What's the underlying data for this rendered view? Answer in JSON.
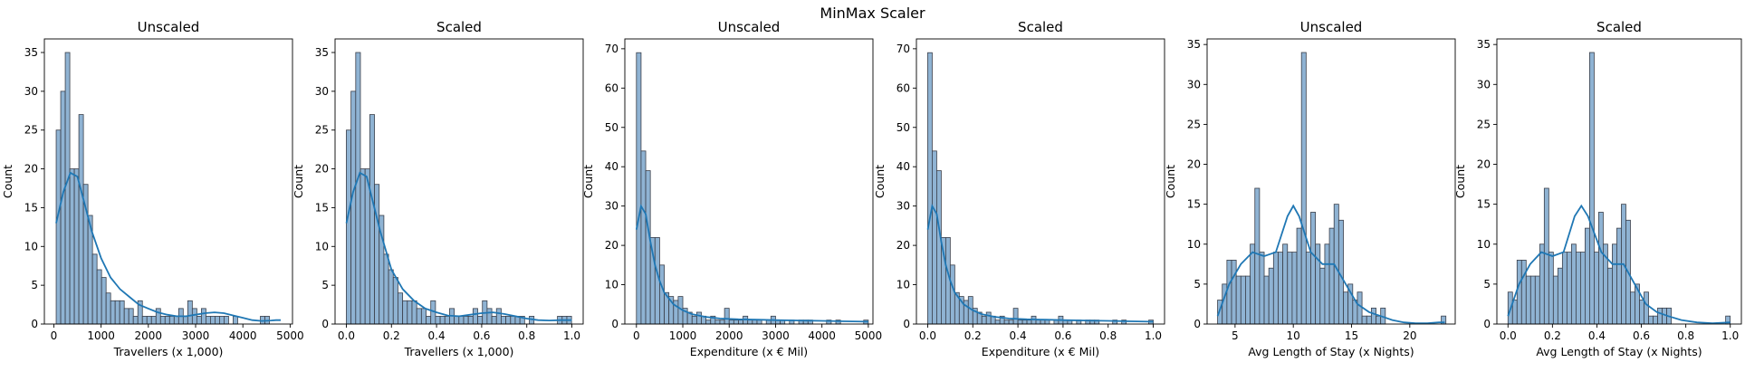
{
  "figure": {
    "suptitle": "MinMax Scaler"
  },
  "colors": {
    "bar_fill": "#8fb3d3",
    "bar_edge": "#3a3f4a",
    "kde": "#1f77b4"
  },
  "chart_data": [
    {
      "type": "bar",
      "title": "Unscaled",
      "xlabel": "Travellers (x 1,000)",
      "ylabel": "Count",
      "xlim": [
        -200,
        5050
      ],
      "ylim": [
        0,
        36.75
      ],
      "xticks": [
        0,
        1000,
        2000,
        3000,
        4000,
        5000
      ],
      "xtick_labels": [
        "0",
        "1000",
        "2000",
        "3000",
        "4000",
        "5000"
      ],
      "yticks": [
        0,
        5,
        10,
        15,
        20,
        25,
        30,
        35
      ],
      "ytick_labels": [
        "0",
        "5",
        "10",
        "15",
        "20",
        "25",
        "30",
        "35"
      ],
      "bin_start": 50,
      "bin_width": 96,
      "values": [
        25,
        30,
        35,
        20,
        20,
        27,
        18,
        14,
        9,
        7,
        6,
        4,
        3,
        3,
        3,
        2,
        2,
        1,
        3,
        1,
        1,
        1,
        2,
        1,
        1,
        1,
        1,
        2,
        1,
        3,
        2,
        1,
        2,
        1,
        1,
        1,
        1,
        1,
        0,
        1,
        0,
        0,
        0,
        0,
        0,
        1,
        1,
        0
      ],
      "kde_x": [
        50,
        200,
        350,
        500,
        650,
        800,
        1000,
        1200,
        1400,
        1600,
        1800,
        2000,
        2200,
        2400,
        2600,
        2800,
        3000,
        3200,
        3400,
        3600,
        3800,
        4000,
        4200,
        4400,
        4600,
        4700,
        4800
      ],
      "kde_y": [
        13,
        17,
        19.5,
        19,
        15.5,
        12,
        8.5,
        6,
        4.5,
        3.5,
        2.5,
        2,
        1.5,
        1.2,
        1,
        1,
        1.2,
        1.4,
        1.5,
        1.4,
        1.1,
        0.8,
        0.5,
        0.4,
        0.45,
        0.5,
        0.5
      ]
    },
    {
      "type": "bar",
      "title": "Scaled",
      "xlabel": "Travellers (x 1,000)",
      "ylabel": "Count",
      "xlim": [
        -0.05,
        1.05
      ],
      "ylim": [
        0,
        36.75
      ],
      "xticks": [
        0,
        0.2,
        0.4,
        0.6,
        0.8,
        1.0
      ],
      "xtick_labels": [
        "0.0",
        "0.2",
        "0.4",
        "0.6",
        "0.8",
        "1.0"
      ],
      "yticks": [
        0,
        5,
        10,
        15,
        20,
        25,
        30,
        35
      ],
      "ytick_labels": [
        "0",
        "5",
        "10",
        "15",
        "20",
        "25",
        "30",
        "35"
      ],
      "bin_start": 0,
      "bin_width": 0.0208,
      "values": [
        25,
        30,
        35,
        20,
        20,
        27,
        18,
        14,
        9,
        7,
        6,
        4,
        3,
        3,
        3,
        2,
        2,
        1,
        3,
        1,
        1,
        1,
        2,
        1,
        1,
        1,
        1,
        2,
        1,
        3,
        2,
        1,
        2,
        1,
        1,
        1,
        1,
        1,
        0,
        1,
        0,
        0,
        0,
        0,
        0,
        1,
        1,
        1
      ],
      "kde_x": [
        0,
        0.03,
        0.06,
        0.09,
        0.12,
        0.15,
        0.2,
        0.25,
        0.3,
        0.35,
        0.4,
        0.45,
        0.5,
        0.55,
        0.6,
        0.65,
        0.7,
        0.75,
        0.8,
        0.85,
        0.9,
        0.95,
        1.0
      ],
      "kde_y": [
        13,
        17,
        19.5,
        19,
        15.5,
        12,
        7,
        4.5,
        3,
        2,
        1.5,
        1.1,
        1,
        1.2,
        1.4,
        1.5,
        1.3,
        1,
        0.7,
        0.5,
        0.45,
        0.5,
        0.5
      ]
    },
    {
      "type": "bar",
      "title": "Unscaled",
      "xlabel": "Expenditure (x € Mil)",
      "ylabel": "Count",
      "xlim": [
        -250,
        5100
      ],
      "ylim": [
        0,
        72.5
      ],
      "xticks": [
        0,
        1000,
        2000,
        3000,
        4000,
        5000
      ],
      "xtick_labels": [
        "0",
        "1000",
        "2000",
        "3000",
        "4000",
        "5000"
      ],
      "yticks": [
        0,
        10,
        20,
        30,
        40,
        50,
        60,
        70
      ],
      "ytick_labels": [
        "0",
        "10",
        "20",
        "30",
        "40",
        "50",
        "60",
        "70"
      ],
      "bin_start": 0,
      "bin_width": 100,
      "values": [
        69,
        44,
        39,
        22,
        22,
        15,
        8,
        7,
        6,
        7,
        4,
        3,
        2,
        3,
        2,
        1,
        2,
        1,
        1,
        4,
        1,
        1,
        1,
        2,
        1,
        1,
        1,
        0,
        1,
        2,
        1,
        1,
        0,
        1,
        0,
        1,
        1,
        1,
        0,
        0,
        0,
        1,
        0,
        1,
        0,
        0,
        0,
        0,
        0,
        1
      ],
      "kde_x": [
        0,
        100,
        200,
        300,
        400,
        500,
        600,
        800,
        1000,
        1200,
        1500,
        1800,
        2200,
        2600,
        3000,
        3500,
        4000,
        4500,
        5000
      ],
      "kde_y": [
        24,
        30,
        28,
        21,
        15,
        11,
        8,
        5,
        3.5,
        2.5,
        1.8,
        1.4,
        1.2,
        1.1,
        1,
        0.9,
        0.8,
        0.7,
        0.6
      ]
    },
    {
      "type": "bar",
      "title": "Scaled",
      "xlabel": "Expenditure (x € Mil)",
      "ylabel": "Count",
      "xlim": [
        -0.05,
        1.05
      ],
      "ylim": [
        0,
        72.5
      ],
      "xticks": [
        0,
        0.2,
        0.4,
        0.6,
        0.8,
        1.0
      ],
      "xtick_labels": [
        "0.0",
        "0.2",
        "0.4",
        "0.6",
        "0.8",
        "1.0"
      ],
      "yticks": [
        0,
        10,
        20,
        30,
        40,
        50,
        60,
        70
      ],
      "ytick_labels": [
        "0",
        "10",
        "20",
        "30",
        "40",
        "50",
        "60",
        "70"
      ],
      "bin_start": 0,
      "bin_width": 0.02,
      "values": [
        69,
        44,
        39,
        22,
        22,
        15,
        8,
        7,
        6,
        7,
        4,
        3,
        2,
        3,
        2,
        1,
        2,
        1,
        1,
        4,
        1,
        1,
        1,
        2,
        1,
        1,
        1,
        0,
        1,
        2,
        1,
        1,
        0,
        1,
        0,
        1,
        1,
        1,
        0,
        0,
        0,
        1,
        0,
        1,
        0,
        0,
        0,
        0,
        0,
        1
      ],
      "kde_x": [
        0,
        0.02,
        0.04,
        0.06,
        0.08,
        0.1,
        0.12,
        0.16,
        0.2,
        0.24,
        0.3,
        0.36,
        0.44,
        0.52,
        0.6,
        0.7,
        0.8,
        0.9,
        1.0
      ],
      "kde_y": [
        24,
        30,
        28,
        21,
        15,
        11,
        8,
        5,
        3.5,
        2.5,
        1.8,
        1.4,
        1.2,
        1.1,
        1,
        0.9,
        0.8,
        0.7,
        0.6
      ]
    },
    {
      "type": "bar",
      "title": "Unscaled",
      "xlabel": "Avg Length of Stay (x Nights)",
      "ylabel": "Count",
      "xlim": [
        2.6,
        23.9
      ],
      "ylim": [
        0,
        35.7
      ],
      "xticks": [
        5,
        10,
        15,
        20
      ],
      "xtick_labels": [
        "5",
        "10",
        "15",
        "20"
      ],
      "yticks": [
        0,
        5,
        10,
        15,
        20,
        25,
        30,
        35
      ],
      "ytick_labels": [
        "0",
        "5",
        "10",
        "15",
        "20",
        "25",
        "30",
        "35"
      ],
      "bin_start": 3.5,
      "bin_width": 0.4,
      "values": [
        3,
        5,
        8,
        8,
        6,
        6,
        6,
        10,
        17,
        9,
        6,
        7,
        9,
        9,
        10,
        9,
        9,
        12,
        34,
        9,
        14,
        10,
        7,
        10,
        12,
        15,
        13,
        4,
        5,
        3,
        4,
        1,
        1,
        2,
        1,
        2,
        0,
        0,
        0,
        0,
        0,
        0,
        0,
        0,
        0,
        0,
        0,
        0,
        1
      ],
      "kde_x": [
        3.5,
        4.5,
        5.5,
        6.5,
        7.5,
        8.5,
        9.5,
        10,
        10.5,
        11.5,
        12.5,
        13.5,
        14.5,
        15.5,
        16.5,
        17.5,
        18.5,
        19.5,
        20.5,
        21.5,
        22.5,
        23
      ],
      "kde_y": [
        1,
        5,
        7.5,
        9,
        8.5,
        9,
        13.5,
        14.8,
        13.5,
        9,
        7.5,
        7.5,
        5,
        2.5,
        1.5,
        1,
        0.5,
        0.2,
        0.1,
        0.1,
        0.2,
        0.2
      ]
    },
    {
      "type": "bar",
      "title": "Scaled",
      "xlabel": "Avg Length of Stay (x Nights)",
      "ylabel": "Count",
      "xlim": [
        -0.05,
        1.05
      ],
      "ylim": [
        0,
        35.7
      ],
      "xticks": [
        0,
        0.2,
        0.4,
        0.6,
        0.8,
        1.0
      ],
      "xtick_labels": [
        "0.0",
        "0.2",
        "0.4",
        "0.6",
        "0.8",
        "1.0"
      ],
      "yticks": [
        0,
        5,
        10,
        15,
        20,
        25,
        30,
        35
      ],
      "ytick_labels": [
        "0",
        "5",
        "10",
        "15",
        "20",
        "25",
        "30",
        "35"
      ],
      "bin_start": 0,
      "bin_width": 0.0204,
      "values": [
        4,
        3,
        8,
        8,
        6,
        6,
        6,
        10,
        17,
        9,
        6,
        7,
        9,
        9,
        10,
        9,
        9,
        12,
        34,
        9,
        14,
        10,
        7,
        10,
        12,
        15,
        13,
        4,
        5,
        3,
        4,
        1,
        1,
        2,
        2,
        2,
        0,
        0,
        0,
        0,
        0,
        0,
        0,
        0,
        0,
        0,
        0,
        0,
        1
      ],
      "kde_x": [
        0,
        0.05,
        0.1,
        0.15,
        0.2,
        0.25,
        0.3,
        0.33,
        0.36,
        0.42,
        0.47,
        0.52,
        0.57,
        0.62,
        0.67,
        0.72,
        0.78,
        0.85,
        0.92,
        1.0
      ],
      "kde_y": [
        1,
        5,
        7.5,
        9,
        8.5,
        9,
        13.5,
        14.8,
        13.5,
        9,
        7.5,
        7.5,
        5,
        2.5,
        1.5,
        1,
        0.5,
        0.2,
        0.1,
        0.2
      ]
    }
  ]
}
